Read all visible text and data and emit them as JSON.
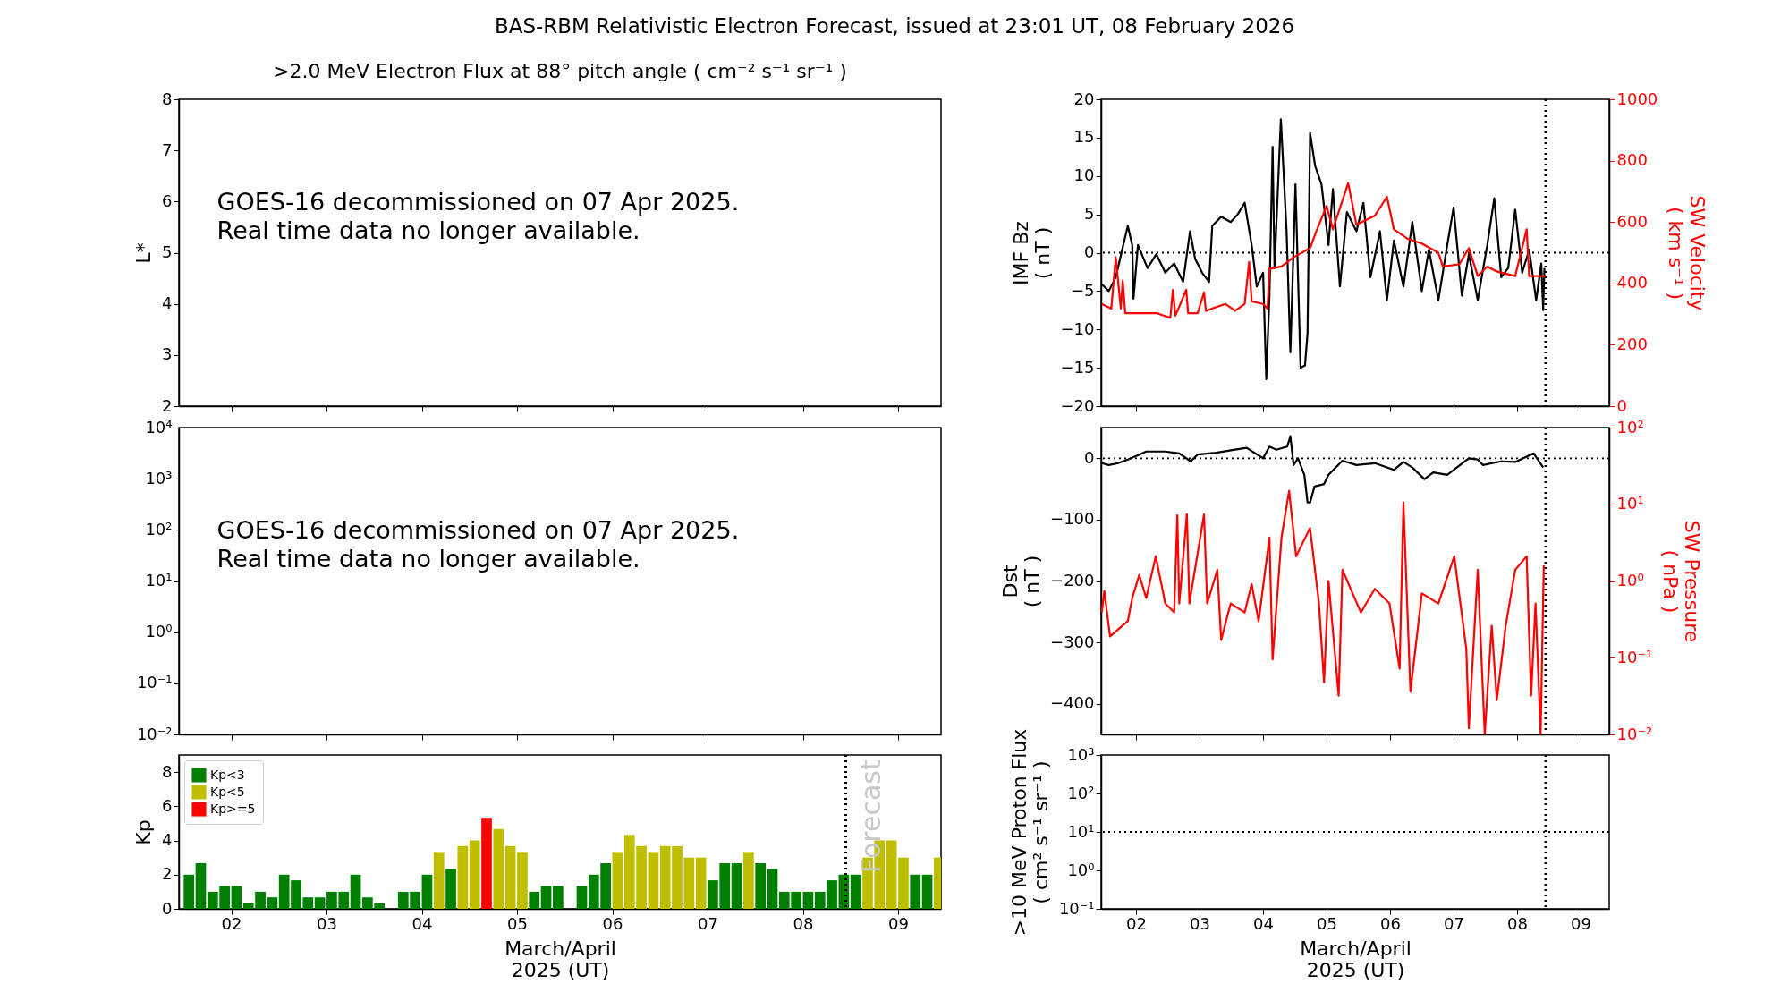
{
  "chart_data": [
    {
      "type": "line",
      "title": "BAS-RBM Relativistic Electron Forecast, issued at 23:01 UT, 08 February 2026",
      "subtitle": ">2.0 MeV Electron Flux at 88° pitch angle ( cm⁻² s⁻¹ sr⁻¹ )",
      "ylabel": "L*",
      "xlim": [
        1.45,
        9.45
      ],
      "xticks": [
        {
          "value": 2,
          "label": null
        },
        {
          "value": 3,
          "label": null
        },
        {
          "value": 4,
          "label": null
        },
        {
          "value": 5,
          "label": null
        },
        {
          "value": 6,
          "label": null
        },
        {
          "value": 7,
          "label": null
        },
        {
          "value": 8,
          "label": null
        },
        {
          "value": 9,
          "label": null
        }
      ],
      "ylim": [
        2,
        8
      ],
      "yticks": [
        2,
        3,
        4,
        5,
        6,
        7,
        8
      ],
      "tick_labels": "y",
      "annotations": [
        "GOES-16 decommissioned on 07 Apr 2025.\nReal time data no longer available."
      ]
    },
    {
      "type": "line",
      "ylabel": "IMF Bz\n( nT )",
      "y2label": "SW Velocity\n( km s⁻¹ )",
      "xlim": [
        1.45,
        9.45
      ],
      "xticks": [
        {
          "value": 2,
          "label": null
        },
        {
          "value": 3,
          "label": null
        },
        {
          "value": 4,
          "label": null
        },
        {
          "value": 5,
          "label": null
        },
        {
          "value": 6,
          "label": null
        },
        {
          "value": 7,
          "label": null
        },
        {
          "value": 8,
          "label": null
        },
        {
          "value": 9,
          "label": null
        }
      ],
      "ylim": [
        -20,
        20
      ],
      "yticks": [
        -20,
        -15,
        -10,
        -5,
        0,
        5,
        10,
        15,
        20
      ],
      "y2lim": [
        0,
        1000
      ],
      "y2ticks": [
        0,
        200,
        400,
        600,
        800,
        1000
      ],
      "tick_labels": "y",
      "series": [
        {
          "color": "#000000",
          "x": [
            1.46,
            1.57,
            1.68,
            1.87,
            1.94,
            1.96,
            2.03,
            2.18,
            2.32,
            2.46,
            2.6,
            2.74,
            2.85,
            2.93,
            3.04,
            3.15,
            3.2,
            3.34,
            3.49,
            3.6,
            3.71,
            3.82,
            3.9,
            4.0,
            4.05,
            4.1,
            4.15,
            4.18,
            4.28,
            4.37,
            4.43,
            4.51,
            4.59,
            4.66,
            4.7,
            4.74,
            4.82,
            4.92,
            5.03,
            5.1,
            5.21,
            5.32,
            5.47,
            5.58,
            5.69,
            5.84,
            5.95,
            6.06,
            6.21,
            6.35,
            6.5,
            6.61,
            6.76,
            6.9,
            7.0,
            7.13,
            7.24,
            7.38,
            7.53,
            7.64,
            7.75,
            7.86,
            7.97,
            8.08,
            8.19,
            8.3,
            8.38,
            8.41,
            8.43
          ],
          "values": [
            -4.1,
            -5,
            -3.2,
            3.5,
            1,
            -6,
            1,
            -2,
            -0.2,
            -2.6,
            -1.4,
            -3.8,
            2.8,
            -0.8,
            -2.6,
            -3.8,
            3.5,
            4.7,
            4,
            5,
            6.5,
            1,
            -4.4,
            -2.6,
            -16.5,
            -5.6,
            13.8,
            -2,
            17.4,
            2.8,
            -13,
            8.9,
            -15,
            -14.7,
            -10.5,
            15.6,
            11.3,
            8.9,
            1,
            8.3,
            -4.4,
            5.3,
            2.8,
            6.5,
            -3.2,
            2.8,
            -6.2,
            1.6,
            -4.4,
            4,
            -5,
            0.4,
            -6.2,
            1,
            5.9,
            -5.6,
            -0.2,
            -6.2,
            1,
            7.1,
            -3.2,
            -2,
            5.6,
            -2.6,
            0.4,
            -6.2,
            -1.4,
            -7.5,
            -2
          ]
        },
        {
          "color": "#ff0000",
          "axis": "y2",
          "x": [
            1.46,
            1.61,
            1.68,
            1.76,
            1.79,
            1.83,
            2.03,
            2.32,
            2.54,
            2.58,
            2.62,
            2.79,
            2.82,
            2.97,
            3.07,
            3.1,
            3.19,
            3.41,
            3.56,
            3.71,
            3.78,
            3.82,
            4.0,
            4.07,
            4.1,
            4.29,
            4.48,
            4.74,
            4.85,
            5.0,
            5.1,
            5.34,
            5.47,
            5.76,
            5.95,
            6.06,
            6.28,
            6.5,
            6.76,
            6.83,
            7.09,
            7.24,
            7.38,
            7.53,
            7.68,
            7.97,
            8.15,
            8.19,
            8.45
          ],
          "values": [
            333,
            318,
            485,
            318,
            409,
            303,
            303,
            303,
            288,
            379,
            295,
            379,
            303,
            303,
            371,
            310,
            318,
            333,
            311,
            333,
            470,
            341,
            333,
            318,
            447,
            455,
            485,
            515,
            576,
            652,
            576,
            727,
            591,
            621,
            682,
            576,
            545,
            530,
            500,
            455,
            462,
            515,
            424,
            455,
            439,
            424,
            576,
            424,
            424
          ]
        }
      ],
      "ref_lines": [
        {
          "axis": "x",
          "value": 8.45,
          "line_style": "dotted"
        },
        {
          "axis": "y",
          "value": 0,
          "line_style": "dotted"
        }
      ]
    },
    {
      "type": "line",
      "xlim": [
        1.45,
        9.45
      ],
      "xticks": [
        {
          "value": 2,
          "label": null
        },
        {
          "value": 3,
          "label": null
        },
        {
          "value": 4,
          "label": null
        },
        {
          "value": 5,
          "label": null
        },
        {
          "value": 6,
          "label": null
        },
        {
          "value": 7,
          "label": null
        },
        {
          "value": 8,
          "label": null
        },
        {
          "value": 9,
          "label": null
        }
      ],
      "ylim": [
        0.01,
        10000
      ],
      "yticks": [
        {
          "value": 0.01,
          "label": "10⁻²"
        },
        {
          "value": 0.1,
          "label": "10⁻¹"
        },
        {
          "value": 1,
          "label": "10⁰"
        },
        {
          "value": 10,
          "label": "10¹"
        },
        {
          "value": 100,
          "label": "10²"
        },
        {
          "value": 1000,
          "label": "10³"
        },
        {
          "value": 10000,
          "label": "10⁴"
        }
      ],
      "log": "y",
      "tick_labels": "y",
      "annotations": [
        "GOES-16 decommissioned on 07 Apr 2025.\nReal time data no longer available."
      ]
    },
    {
      "type": "line",
      "ylabel": "Dst\n( nT )",
      "y2label": "SW Pressure\n( nPa )",
      "xlim": [
        1.45,
        9.45
      ],
      "xticks": [
        {
          "value": 2,
          "label": null
        },
        {
          "value": 3,
          "label": null
        },
        {
          "value": 4,
          "label": null
        },
        {
          "value": 5,
          "label": null
        },
        {
          "value": 6,
          "label": null
        },
        {
          "value": 7,
          "label": null
        },
        {
          "value": 8,
          "label": null
        },
        {
          "value": 9,
          "label": null
        }
      ],
      "ylim": [
        -450,
        50
      ],
      "yticks": [
        -400,
        -300,
        -200,
        -100,
        0
      ],
      "y2lim": [
        0.01,
        100
      ],
      "y2ticks": [
        {
          "value": 0.01,
          "label": "10⁻²"
        },
        {
          "value": 0.1,
          "label": "10⁻¹"
        },
        {
          "value": 1,
          "label": "10⁰"
        },
        {
          "value": 10,
          "label": "10¹"
        },
        {
          "value": 100,
          "label": "10²"
        }
      ],
      "log": "y2",
      "tick_labels": "y",
      "series": [
        {
          "color": "#000000",
          "x": [
            1.46,
            1.57,
            1.72,
            1.87,
            2.01,
            2.16,
            2.46,
            2.68,
            2.86,
            2.97,
            3.26,
            3.56,
            3.74,
            4.0,
            4.1,
            4.21,
            4.38,
            4.43,
            4.48,
            4.55,
            4.65,
            4.7,
            4.74,
            4.81,
            4.96,
            5.03,
            5.25,
            5.47,
            5.76,
            6.06,
            6.21,
            6.35,
            6.54,
            6.68,
            6.9,
            7.05,
            7.24,
            7.38,
            7.46,
            7.75,
            7.97,
            8.26,
            8.41
          ],
          "values": [
            -8,
            -11,
            -8,
            -2,
            4,
            11,
            11,
            8,
            -5,
            6,
            9,
            14,
            17,
            0,
            19,
            14,
            19,
            36,
            -11,
            0,
            -27,
            -72,
            -72,
            -46,
            -42,
            -27,
            -4,
            -11,
            -8,
            -19,
            -6,
            -15,
            -34,
            -23,
            -27,
            -15,
            0,
            -2,
            -11,
            -5,
            -6,
            8,
            -15
          ]
        },
        {
          "color": "#ff0000",
          "axis": "y2",
          "x": [
            1.46,
            1.5,
            1.59,
            1.87,
            1.94,
            2.05,
            2.16,
            2.31,
            2.46,
            2.6,
            2.65,
            2.68,
            2.8,
            2.84,
            3.07,
            3.12,
            3.28,
            3.34,
            3.49,
            3.71,
            3.82,
            3.93,
            4.1,
            4.15,
            4.29,
            4.41,
            4.52,
            4.74,
            4.88,
            4.96,
            5.03,
            5.19,
            5.25,
            5.54,
            5.76,
            5.99,
            6.15,
            6.21,
            6.32,
            6.5,
            6.76,
            7.01,
            7.2,
            7.24,
            7.38,
            7.49,
            7.6,
            7.68,
            7.82,
            7.97,
            8.15,
            8.22,
            8.29,
            8.37,
            8.42
          ],
          "values": [
            0.39,
            0.74,
            0.19,
            0.3,
            0.6,
            1.2,
            0.6,
            2.1,
            0.51,
            0.39,
            7.2,
            0.51,
            7.4,
            0.51,
            7.4,
            0.51,
            1.4,
            0.17,
            0.51,
            0.39,
            0.91,
            0.3,
            3.7,
            0.095,
            3.7,
            15,
            2.1,
            4.9,
            0.51,
            0.048,
            1.0,
            0.032,
            1.4,
            0.39,
            0.79,
            0.51,
            0.072,
            10.5,
            0.036,
            0.69,
            0.51,
            2.1,
            0.13,
            0.012,
            1.4,
            0.01,
            0.26,
            0.028,
            0.26,
            1.4,
            2.1,
            0.032,
            0.51,
            0.01,
            1.6
          ]
        }
      ],
      "ref_lines": [
        {
          "axis": "x",
          "value": 8.45,
          "line_style": "dotted"
        },
        {
          "axis": "y",
          "value": 0,
          "line_style": "dotted"
        }
      ]
    },
    {
      "type": "bar",
      "ylabel": "Kp",
      "xlabel": "March/April\n2025 (UT)",
      "xlim": [
        1.45,
        9.45
      ],
      "xticks": [
        {
          "value": 2,
          "label": "02"
        },
        {
          "value": 3,
          "label": "03"
        },
        {
          "value": 4,
          "label": "04"
        },
        {
          "value": 5,
          "label": "05"
        },
        {
          "value": 6,
          "label": "06"
        },
        {
          "value": 7,
          "label": "07"
        },
        {
          "value": 8,
          "label": "08"
        },
        {
          "value": 9,
          "label": "09"
        }
      ],
      "ylim": [
        0,
        9
      ],
      "yticks": [
        0,
        2,
        4,
        6,
        8
      ],
      "legend": "top left",
      "x": [
        1.5,
        1.625,
        1.75,
        1.875,
        2,
        2.125,
        2.25,
        2.375,
        2.5,
        2.625,
        2.75,
        2.875,
        3,
        3.125,
        3.25,
        3.375,
        3.5,
        3.625,
        3.75,
        3.875,
        4,
        4.125,
        4.25,
        4.375,
        4.5,
        4.625,
        4.75,
        4.875,
        5,
        5.125,
        5.25,
        5.375,
        5.5,
        5.625,
        5.75,
        5.875,
        6,
        6.125,
        6.25,
        6.375,
        6.5,
        6.625,
        6.75,
        6.875,
        7,
        7.125,
        7.25,
        7.375,
        7.5,
        7.625,
        7.75,
        7.875,
        8,
        8.125,
        8.25,
        8.375,
        8.5,
        8.625,
        8.75,
        8.875,
        9,
        9.125,
        9.25,
        9.375
      ],
      "series": [
        {
          "name": "Kp<3",
          "color": "#008000",
          "values": [
            2,
            2.67,
            1,
            1.33,
            1.33,
            0.33,
            1,
            0.67,
            2,
            1.67,
            0.67,
            0.67,
            1,
            1,
            2,
            0.67,
            0.33,
            0,
            1,
            1,
            2,
            null,
            2.33,
            null,
            null,
            null,
            null,
            null,
            null,
            1,
            1.33,
            1.33,
            0,
            1.33,
            2,
            2.67,
            null,
            null,
            null,
            null,
            null,
            null,
            null,
            null,
            1.67,
            2.67,
            2.67,
            null,
            2.67,
            2.33,
            1,
            1,
            1,
            1,
            1.67,
            2,
            2,
            null,
            null,
            null,
            null,
            2,
            2,
            null
          ]
        },
        {
          "name": "Kp<5",
          "color": "#bfbf00",
          "values": [
            null,
            null,
            null,
            null,
            null,
            null,
            null,
            null,
            null,
            null,
            null,
            null,
            null,
            null,
            null,
            null,
            null,
            null,
            null,
            null,
            null,
            3.33,
            null,
            3.67,
            4,
            null,
            4.67,
            3.67,
            3.33,
            null,
            null,
            null,
            null,
            null,
            null,
            null,
            3.33,
            4.33,
            3.67,
            3.33,
            3.67,
            3.67,
            3,
            3,
            null,
            null,
            null,
            3.33,
            null,
            null,
            null,
            null,
            null,
            null,
            null,
            null,
            null,
            3,
            4,
            4,
            3,
            null,
            null,
            3
          ]
        },
        {
          "name": "Kp>=5",
          "color": "#ff0000",
          "values": [
            null,
            null,
            null,
            null,
            null,
            null,
            null,
            null,
            null,
            null,
            null,
            null,
            null,
            null,
            null,
            null,
            null,
            null,
            null,
            null,
            null,
            null,
            null,
            null,
            null,
            5.33,
            null,
            null,
            null,
            null,
            null,
            null,
            null,
            null,
            null,
            null,
            null,
            null,
            null,
            null,
            null,
            null,
            null,
            null,
            null,
            null,
            null,
            null,
            null,
            null,
            null,
            null,
            null,
            null,
            null,
            null,
            null,
            null,
            null,
            null,
            null,
            null,
            null,
            null
          ]
        }
      ],
      "ref_lines": [
        {
          "axis": "x",
          "value": 8.45,
          "line_style": "dotted"
        }
      ],
      "annotations": [
        "Forecast"
      ]
    },
    {
      "type": "line",
      "ylabel": ">10 MeV Proton Flux\n( cm² s⁻¹ sr⁻¹ )",
      "xlabel": "March/April\n2025 (UT)",
      "xlim": [
        1.45,
        9.45
      ],
      "xticks": [
        {
          "value": 2,
          "label": "02"
        },
        {
          "value": 3,
          "label": "03"
        },
        {
          "value": 4,
          "label": "04"
        },
        {
          "value": 5,
          "label": "05"
        },
        {
          "value": 6,
          "label": "06"
        },
        {
          "value": 7,
          "label": "07"
        },
        {
          "value": 8,
          "label": "08"
        },
        {
          "value": 9,
          "label": "09"
        }
      ],
      "ylim": [
        0.1,
        1000
      ],
      "yticks": [
        {
          "value": 0.1,
          "label": "10⁻¹"
        },
        {
          "value": 1,
          "label": "10⁰"
        },
        {
          "value": 10,
          "label": "10¹"
        },
        {
          "value": 100,
          "label": "10²"
        },
        {
          "value": 1000,
          "label": "10³"
        }
      ],
      "log": "y",
      "ref_lines": [
        {
          "axis": "x",
          "value": 8.45,
          "line_style": "dotted"
        },
        {
          "axis": "y",
          "value": 10,
          "line_style": "dotted"
        }
      ]
    }
  ]
}
